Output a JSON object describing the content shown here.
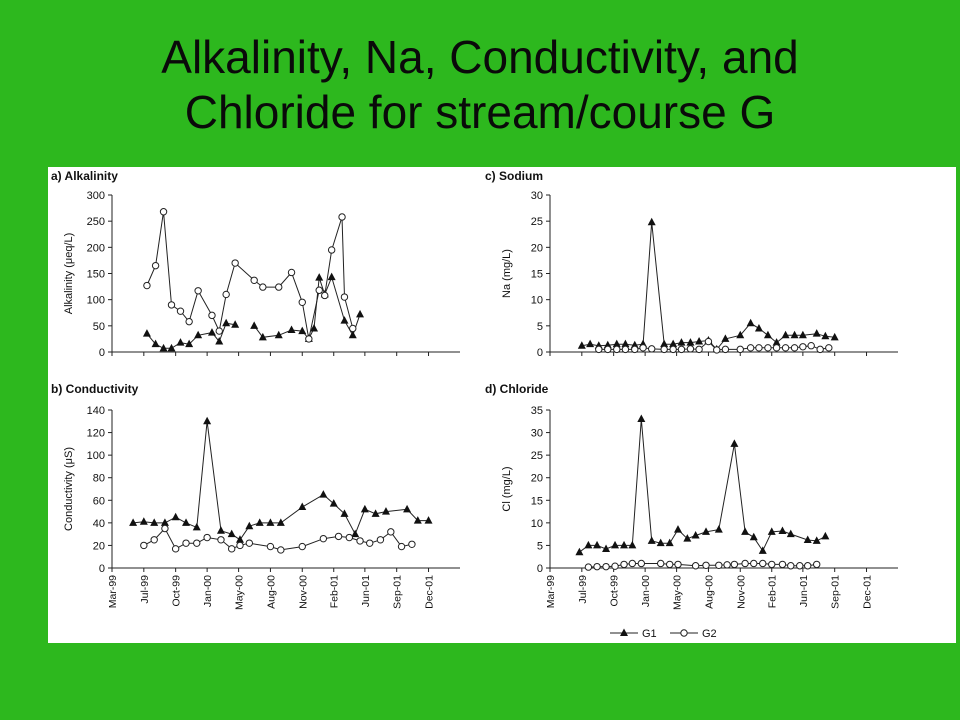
{
  "slide": {
    "title_line1": "Alkalinity, Na, Conductivity, and",
    "title_line2": "Chloride for stream/course G",
    "background_color": "#2db81e"
  },
  "x_ticks": [
    "Mar-99",
    "Jul-99",
    "Oct-99",
    "Jan-00",
    "May-00",
    "Aug-00",
    "Nov-00",
    "Feb-01",
    "Jun-01",
    "Sep-01",
    "Dec-01"
  ],
  "legend": {
    "g1": "G1",
    "g2": "G2"
  },
  "chart_data": [
    {
      "id": "a",
      "type": "line",
      "title": "a) Alkalinity",
      "ylabel": "Alkalinity (μeq/L)",
      "ylim": [
        0,
        300
      ],
      "yticks": [
        0,
        50,
        100,
        150,
        200,
        250,
        300
      ],
      "series": [
        {
          "name": "G1",
          "marker": "triangle",
          "points": [
            [
              "1999-06-10",
              35
            ],
            [
              "1999-07-05",
              15
            ],
            [
              "1999-07-28",
              7
            ],
            [
              "1999-08-20",
              7
            ],
            [
              "1999-09-15",
              18
            ],
            [
              "1999-10-10",
              15
            ],
            [
              "1999-11-05",
              32
            ],
            [
              "1999-12-15",
              37
            ],
            [
              "2000-01-05",
              20
            ],
            [
              "2000-01-25",
              55
            ],
            [
              "2000-02-20",
              52
            ],
            null,
            [
              "2000-04-15",
              50
            ],
            [
              "2000-05-10",
              28
            ],
            [
              "2000-06-25",
              32
            ],
            [
              "2000-08-01",
              42
            ],
            [
              "2000-09-01",
              40
            ],
            [
              "2000-09-20",
              25
            ],
            [
              "2000-10-05",
              45
            ],
            [
              "2000-10-20",
              142
            ],
            [
              "2000-11-05",
              110
            ],
            [
              "2000-11-25",
              143
            ],
            [
              "2001-01-01",
              60
            ],
            [
              "2001-01-25",
              32
            ],
            [
              "2001-02-15",
              72
            ]
          ]
        },
        {
          "name": "G2",
          "marker": "circle",
          "points": [
            [
              "1999-06-10",
              127
            ],
            [
              "1999-07-05",
              165
            ],
            [
              "1999-07-28",
              268
            ],
            [
              "1999-08-20",
              90
            ],
            [
              "1999-09-15",
              78
            ],
            [
              "1999-10-10",
              58
            ],
            [
              "1999-11-05",
              117
            ],
            [
              "1999-12-15",
              70
            ],
            [
              "2000-01-05",
              40
            ],
            [
              "2000-01-25",
              110
            ],
            [
              "2000-02-20",
              170
            ],
            [
              "2000-04-15",
              137
            ],
            [
              "2000-05-10",
              124
            ],
            [
              "2000-06-25",
              124
            ],
            [
              "2000-08-01",
              152
            ],
            [
              "2000-09-01",
              95
            ],
            [
              "2000-09-20",
              25
            ],
            [
              "2000-10-20",
              118
            ],
            [
              "2000-11-05",
              108
            ],
            [
              "2000-11-25",
              195
            ],
            [
              "2000-12-25",
              258
            ],
            [
              "2001-01-01",
              105
            ],
            [
              "2001-01-25",
              45
            ]
          ]
        }
      ]
    },
    {
      "id": "c",
      "type": "line",
      "title": "c) Sodium",
      "ylabel": "Na (mg/L)",
      "ylim": [
        0,
        30
      ],
      "yticks": [
        0,
        5,
        10,
        15,
        20,
        25,
        30
      ],
      "series": [
        {
          "name": "G1",
          "marker": "triangle",
          "points": [
            [
              "1999-06-01",
              1.2
            ],
            [
              "1999-06-25",
              1.5
            ],
            [
              "1999-07-20",
              1.2
            ],
            [
              "1999-08-15",
              1.3
            ],
            [
              "1999-09-10",
              1.5
            ],
            [
              "1999-10-05",
              1.5
            ],
            [
              "1999-11-01",
              1.3
            ],
            [
              "1999-11-25",
              1.5
            ],
            [
              "1999-12-20",
              24.8
            ],
            [
              "2000-01-25",
              1.5
            ],
            [
              "2000-02-20",
              1.5
            ],
            [
              "2000-03-15",
              1.8
            ],
            [
              "2000-04-10",
              1.8
            ],
            [
              "2000-05-05",
              2
            ],
            [
              "2000-06-01",
              2.2
            ],
            [
              "2000-06-25",
              0.5
            ],
            [
              "2000-07-20",
              2.5
            ],
            [
              "2000-09-01",
              3.2
            ],
            [
              "2000-10-01",
              5.5
            ],
            [
              "2000-10-25",
              4.5
            ],
            [
              "2000-11-20",
              3.2
            ],
            [
              "2000-12-15",
              1.8
            ],
            [
              "2001-01-10",
              3.2
            ],
            [
              "2001-02-05",
              3.2
            ],
            [
              "2001-03-01",
              3.2
            ],
            [
              "2001-04-10",
              3.5
            ],
            [
              "2001-05-05",
              3
            ],
            [
              "2001-06-01",
              2.8
            ]
          ]
        },
        {
          "name": "G2",
          "marker": "circle",
          "points": [
            [
              "1999-07-20",
              0.5
            ],
            [
              "1999-08-15",
              0.5
            ],
            [
              "1999-09-10",
              0.5
            ],
            [
              "1999-10-05",
              0.5
            ],
            [
              "1999-11-01",
              0.5
            ],
            [
              "1999-11-25",
              0.8
            ],
            [
              "1999-12-20",
              0.6
            ],
            [
              "2000-01-25",
              0.5
            ],
            [
              "2000-02-20",
              0.5
            ],
            [
              "2000-03-15",
              0.5
            ],
            [
              "2000-04-10",
              0.6
            ],
            [
              "2000-05-05",
              0.5
            ],
            [
              "2000-06-01",
              2
            ],
            [
              "2000-06-25",
              0.4
            ],
            [
              "2000-07-20",
              0.5
            ],
            [
              "2000-09-01",
              0.5
            ],
            [
              "2000-10-01",
              0.8
            ],
            [
              "2000-10-25",
              0.8
            ],
            [
              "2000-11-20",
              0.8
            ],
            [
              "2000-12-15",
              0.8
            ],
            [
              "2001-01-10",
              0.8
            ],
            [
              "2001-02-05",
              0.8
            ],
            [
              "2001-03-01",
              1
            ],
            [
              "2001-03-25",
              1.2
            ],
            [
              "2001-04-20",
              0.5
            ],
            [
              "2001-05-15",
              0.8
            ]
          ]
        }
      ]
    },
    {
      "id": "b",
      "type": "line",
      "title": "b) Conductivity",
      "ylabel": "Conductivity (μS)",
      "ylim": [
        0,
        140
      ],
      "yticks": [
        0,
        20,
        40,
        60,
        80,
        100,
        120,
        140
      ],
      "series": [
        {
          "name": "G1",
          "marker": "triangle",
          "points": [
            [
              "1999-05-01",
              40
            ],
            [
              "1999-06-01",
              41
            ],
            [
              "1999-07-01",
              40
            ],
            [
              "1999-08-01",
              40
            ],
            [
              "1999-09-01",
              45
            ],
            [
              "1999-10-01",
              40
            ],
            [
              "1999-11-01",
              36
            ],
            [
              "1999-12-01",
              130
            ],
            [
              "2000-01-10",
              33
            ],
            [
              "2000-02-10",
              30
            ],
            [
              "2000-03-05",
              25
            ],
            [
              "2000-04-01",
              37
            ],
            [
              "2000-05-01",
              40
            ],
            [
              "2000-06-01",
              40
            ],
            [
              "2000-07-01",
              40
            ],
            [
              "2000-09-01",
              54
            ],
            [
              "2000-11-01",
              65
            ],
            [
              "2000-12-01",
              57
            ],
            [
              "2001-01-01",
              48
            ],
            [
              "2001-02-01",
              30
            ],
            [
              "2001-03-01",
              52
            ],
            [
              "2001-04-01",
              48
            ],
            [
              "2001-05-01",
              50
            ],
            [
              "2001-07-01",
              52
            ],
            [
              "2001-08-01",
              42
            ],
            [
              "2001-09-01",
              42
            ]
          ]
        },
        {
          "name": "G2",
          "marker": "circle",
          "points": [
            [
              "1999-06-01",
              20
            ],
            [
              "1999-07-01",
              25
            ],
            [
              "1999-08-01",
              35
            ],
            [
              "1999-09-01",
              17
            ],
            [
              "1999-10-01",
              22
            ],
            [
              "1999-11-01",
              22
            ],
            [
              "1999-12-01",
              27
            ],
            [
              "2000-01-10",
              25
            ],
            [
              "2000-02-10",
              17
            ],
            [
              "2000-03-05",
              20
            ],
            [
              "2000-04-01",
              22
            ],
            [
              "2000-06-01",
              19
            ],
            [
              "2000-07-01",
              16
            ],
            [
              "2000-09-01",
              19
            ],
            [
              "2000-11-01",
              26
            ],
            [
              "2000-12-15",
              28
            ],
            [
              "2001-01-15",
              27
            ],
            [
              "2001-02-15",
              24
            ],
            [
              "2001-03-15",
              22
            ],
            [
              "2001-04-15",
              25
            ],
            [
              "2001-05-15",
              32
            ],
            [
              "2001-06-15",
              19
            ],
            [
              "2001-07-15",
              21
            ]
          ]
        }
      ]
    },
    {
      "id": "d",
      "type": "line",
      "title": "d) Chloride",
      "ylabel": "Cl (mg/L)",
      "ylim": [
        0,
        35
      ],
      "yticks": [
        0,
        5,
        10,
        15,
        20,
        25,
        30,
        35
      ],
      "series": [
        {
          "name": "G1",
          "marker": "triangle",
          "points": [
            [
              "1999-05-25",
              3.5
            ],
            [
              "1999-06-20",
              5
            ],
            [
              "1999-07-15",
              5
            ],
            [
              "1999-08-10",
              4.2
            ],
            [
              "1999-09-05",
              5
            ],
            [
              "1999-10-01",
              5
            ],
            [
              "1999-10-25",
              5
            ],
            [
              "1999-11-20",
              33
            ],
            [
              "1999-12-20",
              6
            ],
            [
              "2000-01-15",
              5.5
            ],
            [
              "2000-02-10",
              5.5
            ],
            [
              "2000-03-05",
              8.5
            ],
            [
              "2000-04-01",
              6.5
            ],
            [
              "2000-04-25",
              7.2
            ],
            [
              "2000-05-25",
              8
            ],
            [
              "2000-07-01",
              8.5
            ],
            [
              "2000-08-15",
              27.5
            ],
            [
              "2000-09-15",
              8
            ],
            [
              "2000-10-10",
              6.8
            ],
            [
              "2000-11-05",
              3.8
            ],
            [
              "2000-12-01",
              8
            ],
            [
              "2001-01-01",
              8.2
            ],
            [
              "2001-01-25",
              7.5
            ],
            [
              "2001-03-15",
              6.2
            ],
            [
              "2001-04-10",
              6
            ],
            [
              "2001-05-05",
              7
            ]
          ]
        },
        {
          "name": "G2",
          "marker": "circle",
          "points": [
            [
              "1999-06-20",
              0.2
            ],
            [
              "1999-07-15",
              0.3
            ],
            [
              "1999-08-10",
              0.3
            ],
            [
              "1999-09-05",
              0.4
            ],
            [
              "1999-10-01",
              0.8
            ],
            [
              "1999-10-25",
              1
            ],
            [
              "1999-11-20",
              1
            ],
            [
              "2000-01-15",
              1
            ],
            [
              "2000-02-10",
              0.8
            ],
            [
              "2000-03-05",
              0.8
            ],
            [
              "2000-04-25",
              0.5
            ],
            [
              "2000-05-25",
              0.6
            ],
            [
              "2000-07-01",
              0.6
            ],
            [
              "2000-07-25",
              0.7
            ],
            [
              "2000-08-15",
              0.8
            ],
            [
              "2000-09-15",
              1
            ],
            [
              "2000-10-10",
              1
            ],
            [
              "2000-11-05",
              1
            ],
            [
              "2000-12-01",
              0.8
            ],
            [
              "2001-01-01",
              0.8
            ],
            [
              "2001-01-25",
              0.5
            ],
            [
              "2001-02-20",
              0.5
            ],
            [
              "2001-03-15",
              0.5
            ],
            [
              "2001-04-10",
              0.8
            ]
          ]
        }
      ]
    }
  ]
}
